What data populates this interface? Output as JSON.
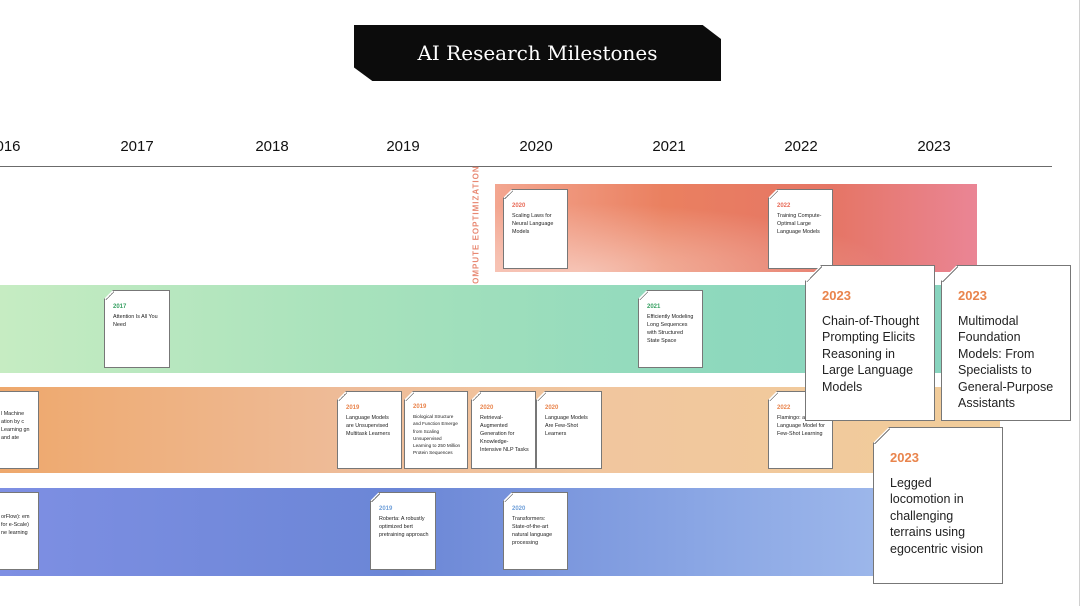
{
  "title": "AI Research Milestones",
  "years": [
    "016",
    "2017",
    "2018",
    "2019",
    "2020",
    "2021",
    "2022",
    "2023"
  ],
  "bands": {
    "compute_label": "COMPUTE EOPTIMIZATION"
  },
  "colors": {
    "compute": "#ea8060",
    "green": "#8fd9bd",
    "orange": "#eebc99",
    "blue": "#6b86d6"
  },
  "cards": {
    "scaling": {
      "year": "2020",
      "text": "Scaling Laws for Neural Language Models"
    },
    "chinchilla": {
      "year": "2022",
      "text": "Training Compute-Optimal Large Language Models"
    },
    "attention": {
      "year": "2017",
      "text": "Attention Is All You Need"
    },
    "s4": {
      "year": "2021",
      "text": "Efficiently Modeling Long Sequences with Structured State Space"
    },
    "ml_left": {
      "text": "l Machine ation by c Learning gn and ate"
    },
    "gpt2": {
      "year": "2019",
      "text": "Language Models are Unsupervised Multitask Learners"
    },
    "protein": {
      "year": "2019",
      "text": "Biological Structure and Function Emerge from Scaling Unsupervised Learning to 250 Million Protein Sequences"
    },
    "rag": {
      "year": "2020",
      "text": "Retrieval-Augmented Generation for Knowledge-Intensive NLP Tasks"
    },
    "gpt3": {
      "year": "2020",
      "text": "Language Models Are Few-Shot Learners"
    },
    "flamingo": {
      "year": "2022",
      "text": "Flamingo: a Visual Language Model for Few-Shot Learning"
    },
    "tf_left": {
      "text": "orFlow): em for e-Scale) ne learning"
    },
    "roberta": {
      "year": "2019",
      "text": "Roberta: A robustly optimized bert pretraining approach"
    },
    "transformers": {
      "year": "2020",
      "text": "Transformers: State-of-the-art natural language processing"
    },
    "cot": {
      "year": "2023",
      "text": "Chain-of-Thought Prompting Elicits Reasoning in Large Language Models"
    },
    "multimodal": {
      "year": "2023",
      "text": "Multimodal Foundation Models: From Specialists to General-Purpose Assistants"
    },
    "legged": {
      "year": "2023",
      "text": "Legged locomotion in challenging terrains using egocentric vision"
    }
  }
}
